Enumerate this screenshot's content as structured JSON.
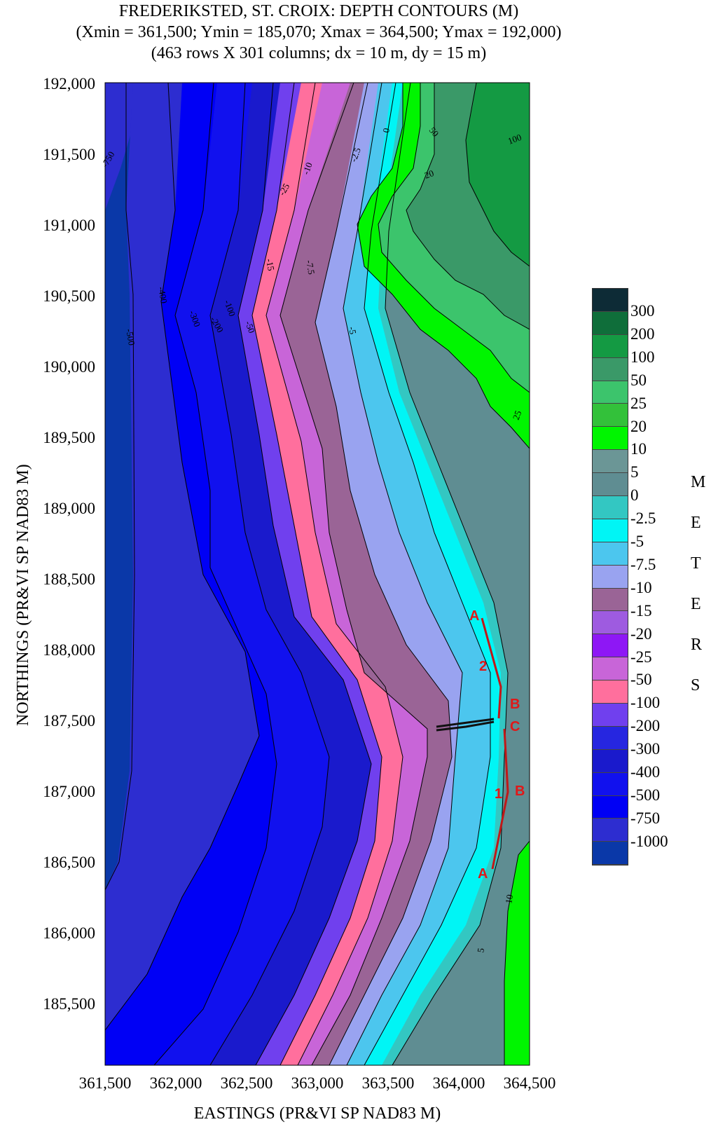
{
  "title": {
    "line1": "FREDERIKSTED, ST. CROIX: DEPTH CONTOURS (M)",
    "line2": "(Xmin = 361,500; Ymin = 185,070; Xmax = 364,500; Ymax = 192,000)",
    "line3": "(463 rows X 301 columns; dx = 10 m, dy = 15 m)"
  },
  "axes": {
    "ylabel": "NORTHINGS (PR&VI SP NAD83 M)",
    "xlabel": "EASTINGS (PR&VI SP NAD83 M)",
    "y_ticks": [
      "192,000",
      "191,500",
      "191,000",
      "190,500",
      "190,000",
      "189,500",
      "189,000",
      "188,500",
      "188,000",
      "187,500",
      "187,000",
      "186,500",
      "186,000",
      "185,500"
    ],
    "x_ticks": [
      "361,500",
      "362,000",
      "362,500",
      "363,000",
      "363,500",
      "364,000",
      "364,500"
    ]
  },
  "legend": {
    "unit_letters": [
      "M",
      "E",
      "T",
      "E",
      "R",
      "S"
    ],
    "levels": [
      {
        "label": "300",
        "color": "#0d2b36"
      },
      {
        "label": "200",
        "color": "#0f6e3a"
      },
      {
        "label": "100",
        "color": "#149a43"
      },
      {
        "label": "50",
        "color": "#3a9968"
      },
      {
        "label": "25",
        "color": "#3cc46c"
      },
      {
        "label": "20",
        "color": "#33c13a"
      },
      {
        "label": "10",
        "color": "#00f500"
      },
      {
        "label": "5",
        "color": "#6b9696"
      },
      {
        "label": "0",
        "color": "#5f8d92"
      },
      {
        "label": "-2.5",
        "color": "#33c7c2"
      },
      {
        "label": "-5",
        "color": "#00f5f5"
      },
      {
        "label": "-7.5",
        "color": "#4cc6ee"
      },
      {
        "label": "-10",
        "color": "#99a3f0"
      },
      {
        "label": "-15",
        "color": "#9a6496"
      },
      {
        "label": "-20",
        "color": "#9e5be0"
      },
      {
        "label": "-25",
        "color": "#8e17f5"
      },
      {
        "label": "-50",
        "color": "#c865d8"
      },
      {
        "label": "-100",
        "color": "#ff6f9d"
      },
      {
        "label": "-200",
        "color": "#7040ee"
      },
      {
        "label": "-300",
        "color": "#2626e0"
      },
      {
        "label": "-400",
        "color": "#1a1acc"
      },
      {
        "label": "-500",
        "color": "#1111ee"
      },
      {
        "label": "-750",
        "color": "#0000f5"
      },
      {
        "label": "-1000",
        "color": "#2d2dd0"
      },
      {
        "label": "",
        "color": "#0a38a8"
      }
    ]
  },
  "profile_labels": [
    "A",
    "2",
    "B",
    "C",
    "1",
    "B",
    "A"
  ],
  "contour_labels": [
    "-750",
    "-500",
    "-400",
    "-300",
    "-200",
    "-100",
    "-50",
    "-25",
    "-15",
    "-10",
    "-7.5",
    "-5",
    "-2.5",
    "0",
    "5",
    "10",
    "20",
    "25",
    "50",
    "100"
  ]
}
